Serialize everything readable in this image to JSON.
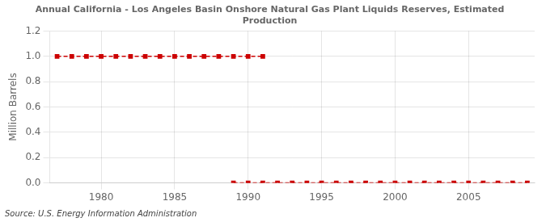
{
  "chart_data": {
    "type": "line",
    "title": "Annual California - Los Angeles Basin Onshore Natural Gas Plant Liquids Reserves, Estimated\nProduction",
    "ylabel": "Million Barrels",
    "annotations": [
      "Source: U.S. Energy Information Administration"
    ],
    "xlim": [
      1976.5,
      2009.5
    ],
    "xticks": [
      1980,
      1985,
      1990,
      1995,
      2000,
      2005
    ],
    "ylim": [
      0.0,
      1.2
    ],
    "yticks": [
      {
        "value": 0.0,
        "label": "0.0"
      },
      0.2,
      0.4,
      0.6,
      0.8,
      {
        "value": 1.0,
        "label": "1.0"
      },
      1.2
    ],
    "grid": true,
    "series": [
      {
        "color": "#cc0000",
        "line_style": "dashed",
        "marker": "square",
        "x": [
          1977,
          1978,
          1979,
          1980,
          1981,
          1982,
          1983,
          1984,
          1985,
          1986,
          1987,
          1988,
          1989,
          1990,
          1991
        ],
        "values": [
          1.0,
          1.0,
          1.0,
          1.0,
          1.0,
          1.0,
          1.0,
          1.0,
          1.0,
          1.0,
          1.0,
          1.0,
          1.0,
          1.0,
          1.0
        ]
      },
      {
        "color": "#cc0000",
        "line_style": "dashed",
        "marker": "square",
        "x": [
          1989,
          1990,
          1991,
          1992,
          1993,
          1994,
          1995,
          1996,
          1997,
          1998,
          1999,
          2000,
          2001,
          2002,
          2003,
          2004,
          2005,
          2006,
          2007,
          2008,
          2009
        ],
        "values": [
          0.0,
          0.0,
          0.0,
          0.0,
          0.0,
          0.0,
          0.0,
          0.0,
          0.0,
          0.0,
          0.0,
          0.0,
          0.0,
          0.0,
          0.0,
          0.0,
          0.0,
          0.0,
          0.0,
          0.0,
          0.0
        ]
      }
    ]
  }
}
